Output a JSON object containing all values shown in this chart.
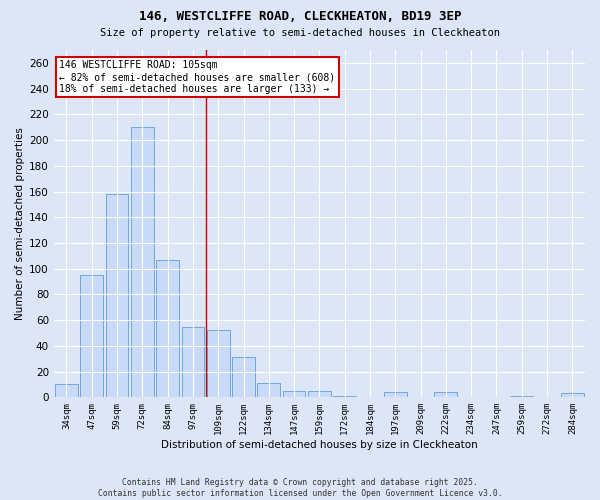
{
  "title1": "146, WESTCLIFFE ROAD, CLECKHEATON, BD19 3EP",
  "title2": "Size of property relative to semi-detached houses in Cleckheaton",
  "xlabel": "Distribution of semi-detached houses by size in Cleckheaton",
  "ylabel": "Number of semi-detached properties",
  "categories": [
    "34sqm",
    "47sqm",
    "59sqm",
    "72sqm",
    "84sqm",
    "97sqm",
    "109sqm",
    "122sqm",
    "134sqm",
    "147sqm",
    "159sqm",
    "172sqm",
    "184sqm",
    "197sqm",
    "209sqm",
    "222sqm",
    "234sqm",
    "247sqm",
    "259sqm",
    "272sqm",
    "284sqm"
  ],
  "values": [
    10,
    95,
    158,
    210,
    107,
    55,
    52,
    31,
    11,
    5,
    5,
    1,
    0,
    4,
    0,
    4,
    0,
    0,
    1,
    0,
    3
  ],
  "bar_color": "#c9daf8",
  "bar_edge_color": "#6fa8dc",
  "vline_x_index": 6,
  "ylim": [
    0,
    270
  ],
  "yticks": [
    0,
    20,
    40,
    60,
    80,
    100,
    120,
    140,
    160,
    180,
    200,
    220,
    240,
    260
  ],
  "annotation_title": "146 WESTCLIFFE ROAD: 105sqm",
  "annotation_line1": "← 82% of semi-detached houses are smaller (608)",
  "annotation_line2": "18% of semi-detached houses are larger (133) →",
  "footer1": "Contains HM Land Registry data © Crown copyright and database right 2025.",
  "footer2": "Contains public sector information licensed under the Open Government Licence v3.0.",
  "bg_color": "#dce6f7",
  "plot_bg_color": "#dce6f7",
  "grid_color": "#ffffff",
  "vline_color": "#cc0000"
}
